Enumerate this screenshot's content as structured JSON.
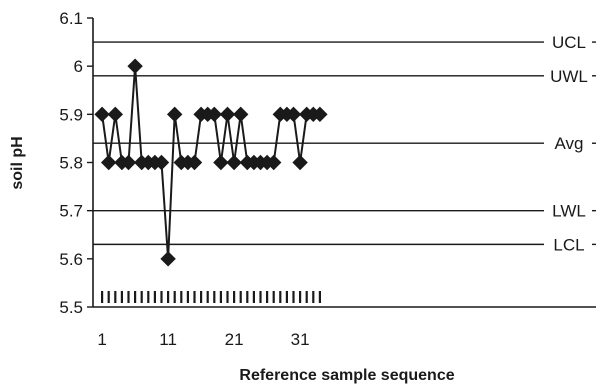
{
  "chart_data": {
    "type": "line",
    "title": "",
    "xlabel": "Reference sample sequence",
    "ylabel": "soil pH",
    "xlim": [
      0,
      35
    ],
    "ylim": [
      5.5,
      6.1
    ],
    "yticks": [
      "5.5",
      "5.6",
      "5.7",
      "5.8",
      "5.9",
      "6",
      "6.1"
    ],
    "xticks": [
      {
        "value": 1,
        "label": "1"
      },
      {
        "value": 11,
        "label": "11"
      },
      {
        "value": 21,
        "label": "21"
      },
      {
        "value": 31,
        "label": "31"
      }
    ],
    "grid": false,
    "marker": "diamond",
    "colors": {
      "line": "#1a1a1a",
      "marker": "#1a1a1a",
      "reference": "#1a1a1a",
      "axis": "#1a1a1a"
    },
    "reference_lines": [
      {
        "label": "UCL",
        "y": 6.05
      },
      {
        "label": "UWL",
        "y": 5.98
      },
      {
        "label": "Avg",
        "y": 5.84
      },
      {
        "label": "LWL",
        "y": 5.7
      },
      {
        "label": "LCL",
        "y": 5.63
      }
    ],
    "series": [
      {
        "x": [
          1,
          2,
          3,
          4,
          5,
          6,
          7,
          8,
          9,
          10,
          11,
          12,
          13,
          14,
          15,
          16,
          17,
          18,
          19,
          20,
          21,
          22,
          23,
          24,
          25,
          26,
          27,
          28,
          29,
          30,
          31,
          32,
          33,
          34
        ],
        "values": [
          5.9,
          5.8,
          5.9,
          5.8,
          5.8,
          6.0,
          5.8,
          5.8,
          5.8,
          5.8,
          5.6,
          5.9,
          5.8,
          5.8,
          5.8,
          5.9,
          5.9,
          5.9,
          5.8,
          5.9,
          5.8,
          5.9,
          5.8,
          5.8,
          5.8,
          5.8,
          5.8,
          5.9,
          5.9,
          5.9,
          5.8,
          5.9,
          5.9,
          5.9
        ]
      }
    ]
  }
}
